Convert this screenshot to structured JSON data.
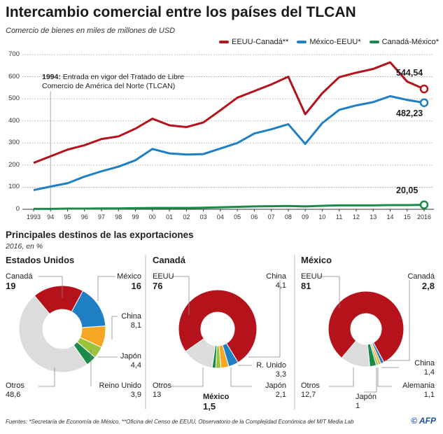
{
  "header": {
    "title": "Intercambio comercial entre los países del TLCAN",
    "subtitle": "Comercio de bienes en miles de millones de USD"
  },
  "chart_data": [
    {
      "type": "line",
      "title": "Intercambio comercial entre los países del TLCAN",
      "subtitle": "Comercio de bienes en miles de millones de USD",
      "x": [
        "1993",
        "94",
        "95",
        "96",
        "97",
        "98",
        "99",
        "00",
        "01",
        "02",
        "03",
        "04",
        "05",
        "06",
        "07",
        "08",
        "09",
        "10",
        "11",
        "12",
        "13",
        "14",
        "15",
        "2016"
      ],
      "ylim": [
        0,
        700
      ],
      "yticks": [
        0,
        100,
        200,
        300,
        400,
        500,
        600,
        700
      ],
      "grid": true,
      "legend": "top-right",
      "series": [
        {
          "name": "EEUU-Canadá**",
          "color": "#b5121b",
          "values": [
            210,
            240,
            270,
            290,
            318,
            330,
            365,
            410,
            380,
            372,
            393,
            448,
            505,
            535,
            565,
            600,
            430,
            525,
            598,
            618,
            635,
            665,
            578,
            544.54
          ],
          "end_label": "544,54"
        },
        {
          "name": "México-EEUU*",
          "color": "#1f7fc4",
          "values": [
            87,
            103,
            118,
            148,
            172,
            193,
            222,
            273,
            253,
            248,
            250,
            275,
            300,
            343,
            362,
            385,
            296,
            390,
            450,
            470,
            485,
            512,
            495,
            482.23
          ],
          "end_label": "482,23"
        },
        {
          "name": "Canadá-México*",
          "color": "#1a8a4a",
          "values": [
            2,
            2,
            3,
            3,
            4,
            4,
            5,
            6,
            6,
            6,
            7,
            9,
            11,
            13,
            14,
            15,
            13,
            16,
            18,
            18,
            18,
            19,
            19,
            20.05
          ],
          "end_label": "20,05"
        }
      ],
      "annotation": {
        "bold": "1994:",
        "text": " Entrada en vigor del Tratado de Libre",
        "text2": "Comercio de América del Norte (TLCAN)",
        "x": "94"
      }
    },
    {
      "type": "pie",
      "title": "Estados Unidos",
      "start_deg": -40,
      "slices": [
        {
          "label": "Canadá",
          "value": 19,
          "text": "19",
          "color": "#b5121b"
        },
        {
          "label": "México",
          "value": 16,
          "text": "16",
          "color": "#1f7fc4"
        },
        {
          "label": "China",
          "value": 8.1,
          "text": "8,1",
          "color": "#f5a623"
        },
        {
          "label": "Japón",
          "value": 4.4,
          "text": "4,4",
          "color": "#9bc43c"
        },
        {
          "label": "Reino Unido",
          "value": 3.9,
          "text": "3,9",
          "color": "#1a8a4a"
        },
        {
          "label": "Otros",
          "value": 48.6,
          "text": "48,6",
          "color": "#dcdcdc"
        }
      ]
    },
    {
      "type": "pie",
      "title": "Canadá",
      "start_deg": 235,
      "slices": [
        {
          "label": "EEUU",
          "value": 76,
          "text": "76",
          "color": "#b5121b"
        },
        {
          "label": "China",
          "value": 4.1,
          "text": "4,1",
          "color": "#1f7fc4"
        },
        {
          "label": "R. Unido",
          "value": 3.3,
          "text": "3,3",
          "color": "#f5a623"
        },
        {
          "label": "Japón",
          "value": 2.1,
          "text": "2,1",
          "color": "#9bc43c"
        },
        {
          "label": "México",
          "value": 1.5,
          "text": "1,5",
          "color": "#1a8a4a"
        },
        {
          "label": "Otros",
          "value": 13,
          "text": "13",
          "color": "#dcdcdc"
        }
      ]
    },
    {
      "type": "pie",
      "title": "México",
      "start_deg": 220,
      "slices": [
        {
          "label": "EEUU",
          "value": 81,
          "text": "81",
          "color": "#b5121b"
        },
        {
          "label": "China",
          "value": 1.4,
          "text": "1,4",
          "color": "#1f7fc4"
        },
        {
          "label": "Alemania",
          "value": 1.1,
          "text": "1,1",
          "color": "#f5a623"
        },
        {
          "label": "Japón",
          "value": 1,
          "text": "1",
          "color": "#9bc43c"
        },
        {
          "label": "Canadá",
          "value": 2.8,
          "text": "2,8",
          "color": "#1a8a4a"
        },
        {
          "label": "Otros",
          "value": 12.7,
          "text": "12,7",
          "color": "#dcdcdc"
        }
      ]
    }
  ],
  "section": {
    "title": "Principales destinos de las exportaciones",
    "subtitle": "2016, en %"
  },
  "footer": {
    "sources": "Fuentes: *Secretaría de Economía de México, **Oficina del Censo de EEUU, Observatorio de la Complejidad Económica del MIT Media Lab",
    "credit": "© AFP"
  }
}
